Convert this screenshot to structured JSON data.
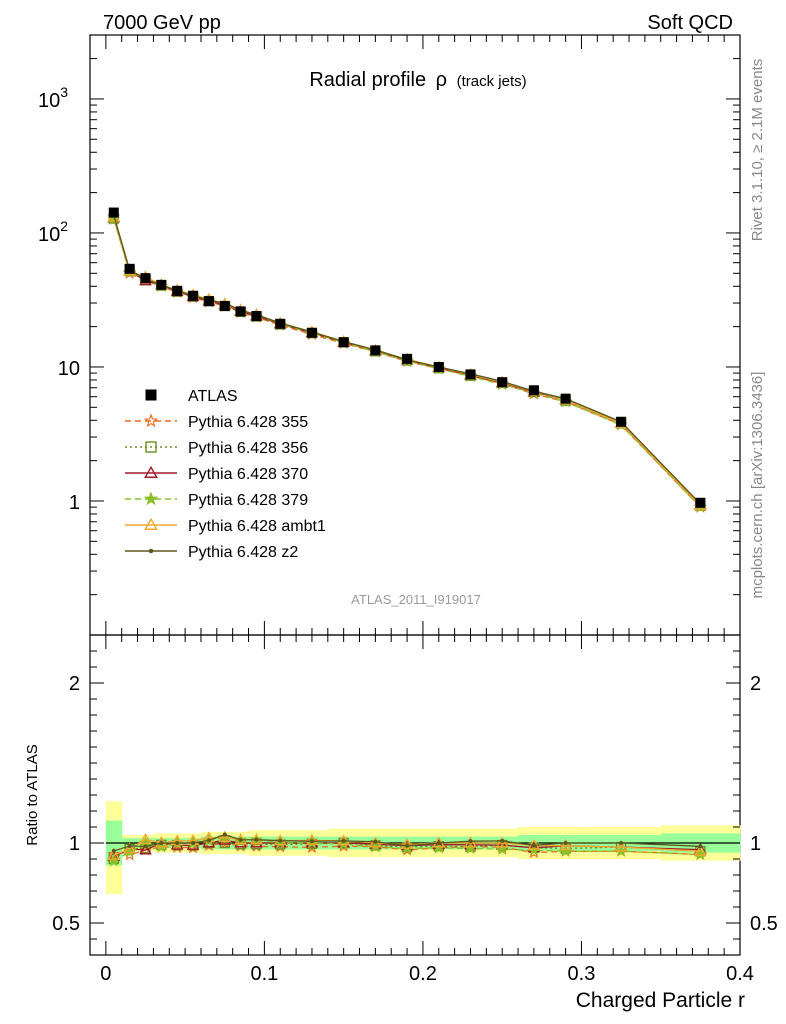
{
  "header": {
    "left": "7000 GeV pp",
    "right": "Soft QCD"
  },
  "side_labels": {
    "rivet": "Rivet 3.1.10, ≥ 2.1M events",
    "mcplots": "mcplots.cern.ch [arXiv:1306.3436]"
  },
  "chart_data": [
    {
      "type": "line",
      "title": "Radial profile",
      "title_symbol": "ρ",
      "title_suffix": "(track jets)",
      "watermark": "ATLAS_2011_I919017",
      "yscale": "log",
      "xlim": [
        -0.01,
        0.4
      ],
      "ylim": [
        0.1,
        3000
      ],
      "yticks": [
        {
          "value": 1,
          "label": "1"
        },
        {
          "value": 10,
          "label": "10"
        },
        {
          "value": 100,
          "label": "10",
          "exp": "2"
        },
        {
          "value": 1000,
          "label": "10",
          "exp": "3"
        }
      ],
      "legend_placement": "middle-left",
      "x": [
        0.005,
        0.015,
        0.025,
        0.035,
        0.045,
        0.055,
        0.065,
        0.075,
        0.085,
        0.095,
        0.11,
        0.13,
        0.15,
        0.17,
        0.19,
        0.21,
        0.23,
        0.25,
        0.27,
        0.29,
        0.325,
        0.375
      ],
      "series": [
        {
          "name": "ATLAS",
          "color": "#000000",
          "marker": "square",
          "dash": "none",
          "values": [
            142,
            54,
            46,
            41,
            37,
            34,
            31,
            28.5,
            26,
            24,
            21,
            18,
            15.3,
            13.3,
            11.5,
            10,
            8.8,
            7.7,
            6.7,
            5.8,
            3.9,
            0.97
          ]
        },
        {
          "name": "Pythia 6.428 355",
          "color": "#ee6a1a",
          "marker": "star",
          "dash": "dashed",
          "values": [
            132,
            50,
            44,
            40,
            36,
            33,
            30.5,
            28.5,
            25.5,
            23.5,
            20.5,
            17.5,
            15,
            13,
            11,
            9.7,
            8.6,
            7.5,
            6.3,
            5.5,
            3.7,
            0.9
          ]
        },
        {
          "name": "Pythia 6.428 356",
          "color": "#6b8e23",
          "marker": "square-open",
          "dash": "dotted",
          "values": [
            128,
            52,
            44.5,
            40.5,
            36.5,
            33.5,
            31,
            28.5,
            25.8,
            23.8,
            20.8,
            17.9,
            15.3,
            13.1,
            11.2,
            9.8,
            8.6,
            7.6,
            6.5,
            5.6,
            3.8,
            0.92
          ]
        },
        {
          "name": "Pythia 6.428 370",
          "color": "#a01a2a",
          "marker": "triangle-open",
          "dash": "solid",
          "values": [
            130,
            52,
            44,
            41,
            36.5,
            33.5,
            31,
            29,
            26,
            24,
            21,
            18,
            15.3,
            13.2,
            11.3,
            9.9,
            8.7,
            7.6,
            6.5,
            5.7,
            3.8,
            0.93
          ]
        },
        {
          "name": "Pythia 6.428 379",
          "color": "#8cbf26",
          "marker": "star-filled",
          "dash": "dashed",
          "values": [
            126,
            51,
            46,
            40,
            37,
            34,
            31.5,
            29.5,
            26.5,
            24.5,
            21,
            18,
            15.2,
            13,
            11.1,
            9.7,
            8.5,
            7.4,
            6.4,
            5.5,
            3.7,
            0.9
          ]
        },
        {
          "name": "Pythia 6.428 ambt1",
          "color": "#f0a830",
          "marker": "triangle-open",
          "dash": "solid",
          "values": [
            131,
            52,
            47,
            41,
            37.5,
            34.5,
            32,
            29.5,
            26.5,
            24.5,
            21.3,
            18.3,
            15.5,
            13.3,
            11.4,
            10,
            8.8,
            7.7,
            6.6,
            5.7,
            3.8,
            0.92
          ]
        },
        {
          "name": "Pythia 6.428 z2",
          "color": "#5a5a1e",
          "marker": "dot",
          "dash": "solid",
          "values": [
            135,
            53,
            45,
            41,
            37,
            34,
            31.5,
            30,
            26.5,
            24.5,
            21.3,
            18.2,
            15.5,
            13.4,
            11.3,
            10,
            8.9,
            7.8,
            6.6,
            5.8,
            3.9,
            0.95
          ]
        }
      ]
    },
    {
      "type": "line",
      "ylabel": "Ratio to ATLAS",
      "xlabel": "Charged Particle r",
      "xlim": [
        -0.01,
        0.4
      ],
      "ylim": [
        0.3,
        2.3
      ],
      "xticks": [
        {
          "value": 0,
          "label": "0"
        },
        {
          "value": 0.1,
          "label": "0.1"
        },
        {
          "value": 0.2,
          "label": "0.2"
        },
        {
          "value": 0.3,
          "label": "0.3"
        },
        {
          "value": 0.4,
          "label": "0.4"
        }
      ],
      "yticks": [
        {
          "value": 0.5,
          "label": "0.5"
        },
        {
          "value": 1,
          "label": "1"
        },
        {
          "value": 2,
          "label": "2"
        }
      ],
      "bands": {
        "bin_edges": [
          0,
          0.01,
          0.02,
          0.03,
          0.04,
          0.05,
          0.06,
          0.07,
          0.08,
          0.09,
          0.1,
          0.12,
          0.14,
          0.16,
          0.18,
          0.2,
          0.22,
          0.24,
          0.26,
          0.28,
          0.3,
          0.35,
          0.4
        ],
        "yellow_lo": [
          0.68,
          0.95,
          0.95,
          0.94,
          0.94,
          0.94,
          0.93,
          0.93,
          0.93,
          0.92,
          0.92,
          0.92,
          0.91,
          0.91,
          0.91,
          0.91,
          0.91,
          0.91,
          0.9,
          0.9,
          0.9,
          0.89
        ],
        "yellow_hi": [
          1.26,
          1.05,
          1.05,
          1.06,
          1.06,
          1.06,
          1.07,
          1.07,
          1.07,
          1.08,
          1.08,
          1.08,
          1.09,
          1.09,
          1.09,
          1.09,
          1.09,
          1.09,
          1.1,
          1.1,
          1.1,
          1.11
        ],
        "green_lo": [
          0.86,
          0.97,
          0.97,
          0.97,
          0.97,
          0.97,
          0.96,
          0.96,
          0.96,
          0.96,
          0.96,
          0.96,
          0.96,
          0.96,
          0.96,
          0.96,
          0.96,
          0.96,
          0.95,
          0.95,
          0.95,
          0.94
        ],
        "green_hi": [
          1.14,
          1.03,
          1.03,
          1.03,
          1.03,
          1.03,
          1.04,
          1.04,
          1.04,
          1.04,
          1.04,
          1.04,
          1.04,
          1.04,
          1.04,
          1.04,
          1.04,
          1.04,
          1.05,
          1.05,
          1.05,
          1.06
        ]
      }
    }
  ]
}
